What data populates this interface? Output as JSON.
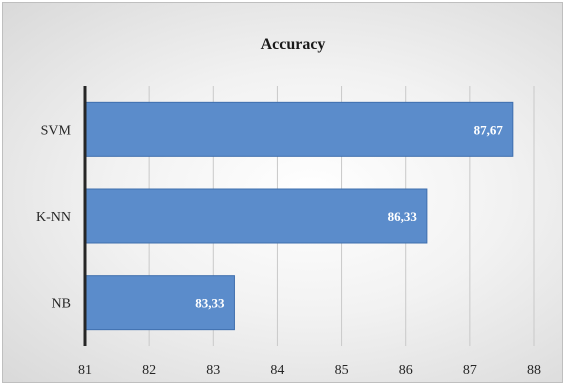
{
  "chart_data": {
    "type": "bar",
    "orientation": "horizontal",
    "title": "Accuracy",
    "categories": [
      "SVM",
      "K-NN",
      "NB"
    ],
    "values": [
      87.67,
      86.33,
      83.33
    ],
    "data_labels": [
      "87,67",
      "86,33",
      "83,33"
    ],
    "xlim": [
      81,
      88
    ],
    "xticks": [
      "81",
      "82",
      "83",
      "84",
      "85",
      "86",
      "87",
      "88"
    ],
    "grid": "vertical",
    "legend": "none",
    "bar_color": "#5b8ccb",
    "bar_border_color": "#3f6fae"
  }
}
